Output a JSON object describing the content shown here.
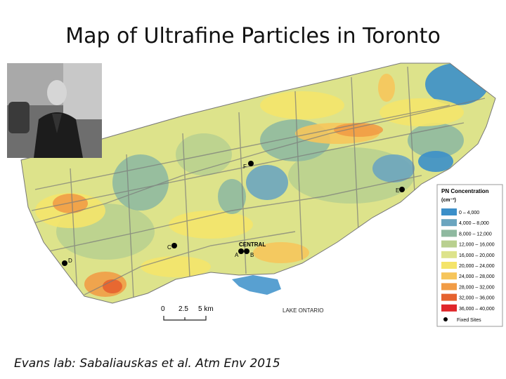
{
  "title": "Map of Ultrafine Particles in Toronto",
  "caption": "Evans lab: Sabaliauskas et al. Atm Env 2015",
  "map": {
    "sites": [
      {
        "label": "F"
      },
      {
        "label": "E"
      },
      {
        "label": "C"
      },
      {
        "label": "D"
      },
      {
        "label": "A"
      },
      {
        "label": "B"
      }
    ],
    "area_label": "CENTRAL",
    "lake_label": "LAKE ONTARIO",
    "scale_labels": [
      "0",
      "2.5",
      "5 km"
    ]
  },
  "legend": {
    "title": "PN Concentration",
    "unit": "(cm⁻³)",
    "items": [
      {
        "label": "0 – 4,000",
        "color": "#3b8fc9"
      },
      {
        "label": "4,000 – 8,000",
        "color": "#6ba5bf"
      },
      {
        "label": "8,000 – 12,000",
        "color": "#8fb9a0"
      },
      {
        "label": "12,000 – 16,000",
        "color": "#b9d08f"
      },
      {
        "label": "16,000 – 20,000",
        "color": "#dde38b"
      },
      {
        "label": "20,000 – 24,000",
        "color": "#f4e46a"
      },
      {
        "label": "24,000 – 28,000",
        "color": "#f6c55b"
      },
      {
        "label": "28,000 – 32,000",
        "color": "#f19c46"
      },
      {
        "label": "32,000 – 36,000",
        "color": "#e5622f"
      },
      {
        "label": "36,000 – 40,000",
        "color": "#e0262a"
      }
    ],
    "fixed_sites": "Fixed Sites"
  }
}
